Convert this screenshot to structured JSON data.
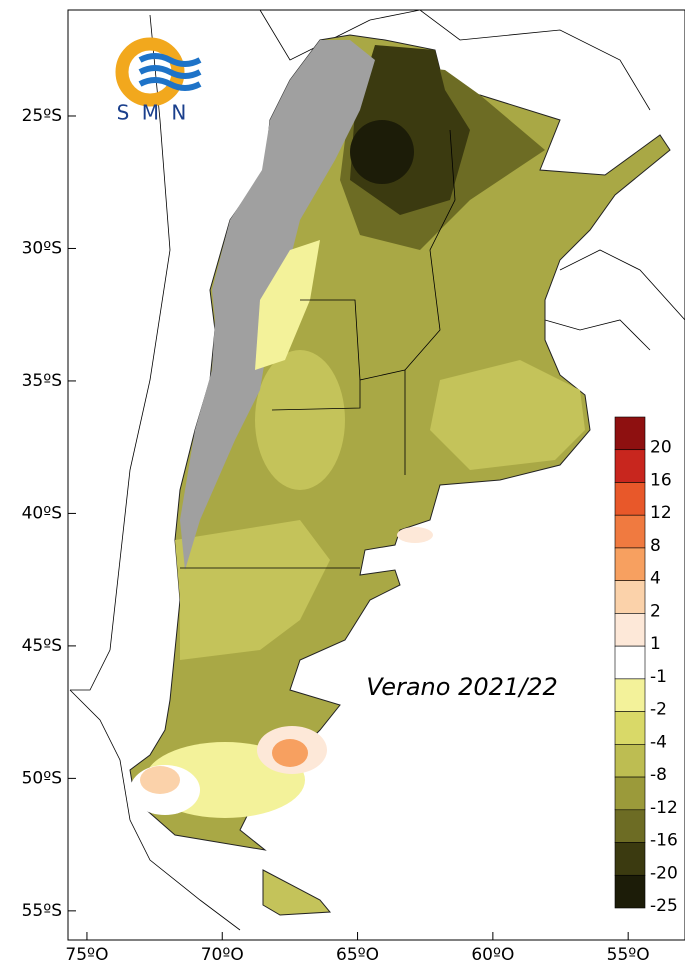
{
  "map": {
    "title": "Verano  2021/22",
    "xlim": [
      -75.7,
      -52.9
    ],
    "ylim": [
      -56.1,
      -21.0
    ],
    "xticks": [
      {
        "value": -75,
        "label": "75ºO"
      },
      {
        "value": -70,
        "label": "70ºO"
      },
      {
        "value": -65,
        "label": "65ºO"
      },
      {
        "value": -60,
        "label": "60ºO"
      },
      {
        "value": -55,
        "label": "55ºO"
      }
    ],
    "yticks": [
      {
        "value": -25,
        "label": "25ºS"
      },
      {
        "value": -30,
        "label": "30ºS"
      },
      {
        "value": -35,
        "label": "35ºS"
      },
      {
        "value": -40,
        "label": "40ºS"
      },
      {
        "value": -45,
        "label": "45ºS"
      },
      {
        "value": -50,
        "label": "50ºS"
      },
      {
        "value": -55,
        "label": "55ºS"
      }
    ],
    "legend": {
      "labels": [
        20,
        16,
        12,
        8,
        4,
        2,
        1,
        -1,
        -2,
        -4,
        -8,
        -12,
        -16,
        -20,
        -25
      ],
      "colors": [
        "#8e1010",
        "#c8261e",
        "#e8582a",
        "#f07a40",
        "#f7a060",
        "#fbd2aa",
        "#fde8d8",
        "#ffffff",
        "#f3f29a",
        "#d9d968",
        "#bdbd52",
        "#9b9a3a",
        "#6d6c24",
        "#3b3a10",
        "#1c1c08"
      ]
    }
  },
  "logo": {
    "text": "S M N"
  }
}
